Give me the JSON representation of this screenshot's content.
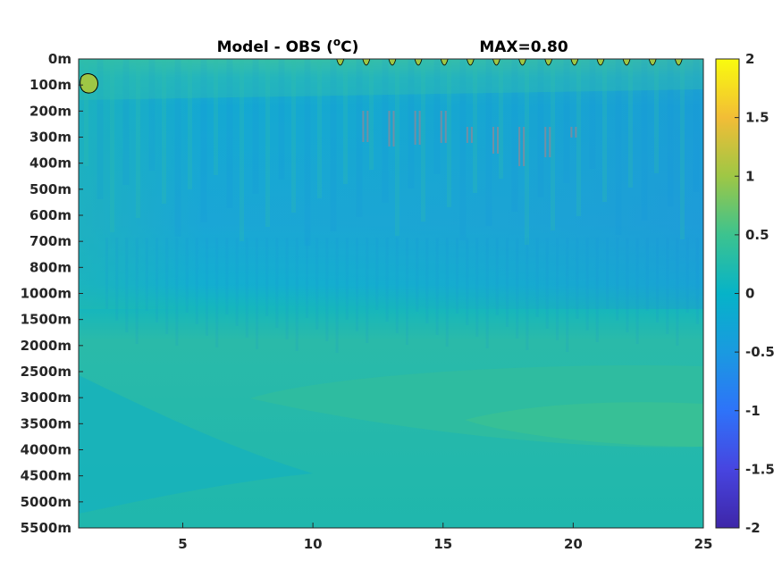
{
  "chart_data": {
    "type": "heatmap",
    "title": {
      "prefix": "Model - OBS (",
      "superscript": "o",
      "suffix": "C)"
    },
    "max_label": "MAX=0.80",
    "xlim": [
      1,
      25
    ],
    "x_ticks": [
      {
        "value": 5,
        "label": "5"
      },
      {
        "value": 10,
        "label": "10"
      },
      {
        "value": 15,
        "label": "15"
      },
      {
        "value": 20,
        "label": "20"
      },
      {
        "value": 25,
        "label": "25"
      }
    ],
    "y_ticks": [
      {
        "label": "0m"
      },
      {
        "label": "100m"
      },
      {
        "label": "200m"
      },
      {
        "label": "300m"
      },
      {
        "label": "400m"
      },
      {
        "label": "500m"
      },
      {
        "label": "600m"
      },
      {
        "label": "700m"
      },
      {
        "label": "800m"
      },
      {
        "label": "1000m"
      },
      {
        "label": "1500m"
      },
      {
        "label": "2000m"
      },
      {
        "label": "2500m"
      },
      {
        "label": "3000m"
      },
      {
        "label": "3500m"
      },
      {
        "label": "4000m"
      },
      {
        "label": "4500m"
      },
      {
        "label": "5000m"
      },
      {
        "label": "5500m"
      }
    ],
    "colorbar": {
      "clim": [
        -2,
        2
      ],
      "ticks": [
        {
          "value": 2,
          "label": "2"
        },
        {
          "value": 1.5,
          "label": "1.5"
        },
        {
          "value": 1,
          "label": "1"
        },
        {
          "value": 0.5,
          "label": "0.5"
        },
        {
          "value": 0,
          "label": "0"
        },
        {
          "value": -0.5,
          "label": "-0.5"
        },
        {
          "value": -1,
          "label": "-1"
        },
        {
          "value": -1.5,
          "label": "-1.5"
        },
        {
          "value": -2,
          "label": "-2"
        }
      ],
      "colormap": "parula"
    },
    "field_description_levels": {
      "surface_positive_max": 0.8,
      "upper_ocean_typical": -0.1,
      "mid_depth_band_200_1000m": -0.35,
      "deep_2000_5500m_background": 0.15,
      "deep_warm_lens": 0.35
    }
  }
}
